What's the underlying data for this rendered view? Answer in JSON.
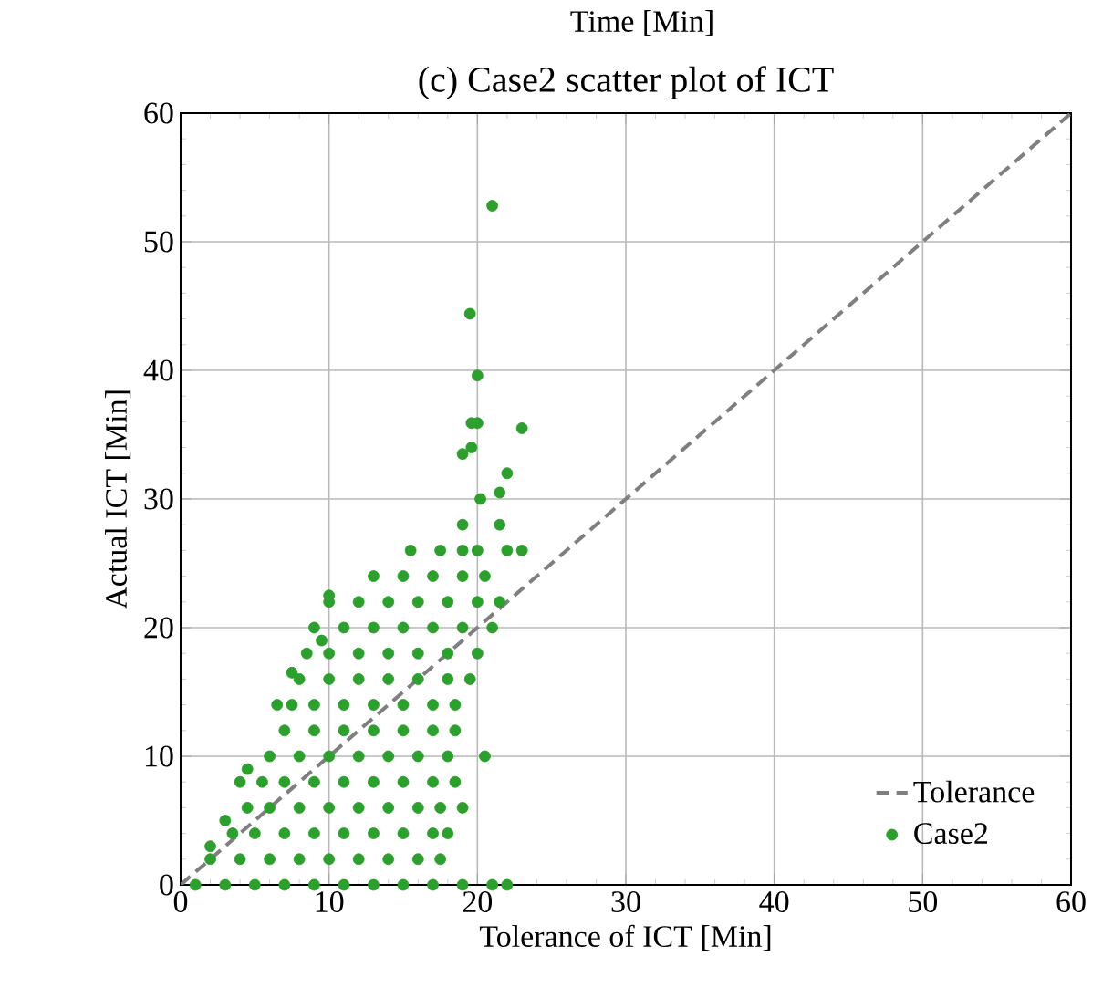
{
  "chart_data": {
    "type": "scatter",
    "title": "(c) Case2 scatter plot of ICT",
    "xlabel": "Tolerance of ICT [Min]",
    "ylabel": "Actual ICT [Min]",
    "annotations": [
      "Time [Min]"
    ],
    "xlim": [
      0,
      60
    ],
    "ylim": [
      0,
      60
    ],
    "xticks": [
      0,
      10,
      20,
      30,
      40,
      50,
      60
    ],
    "yticks": [
      0,
      10,
      20,
      30,
      40,
      50,
      60
    ],
    "grid": true,
    "legend": "bottom right",
    "series": [
      {
        "name": "Case2",
        "color": "#2ca02c",
        "marker": "circle",
        "x": [
          1,
          3,
          5,
          7,
          9,
          11,
          13,
          15,
          17,
          19,
          21,
          22,
          2,
          4,
          6,
          8,
          10,
          12,
          14,
          16,
          17.5,
          3.5,
          5,
          7,
          9,
          11,
          13,
          15,
          17,
          18,
          4.5,
          6,
          8,
          10,
          12,
          14,
          16,
          17.5,
          19,
          5.5,
          7,
          9,
          11,
          13,
          15,
          17,
          18.5,
          6,
          8,
          10,
          12,
          14,
          16,
          18,
          20.5,
          7,
          9,
          11,
          13,
          15,
          17,
          18.5,
          7.5,
          9,
          11,
          13,
          15,
          17,
          18.5,
          8,
          10,
          12,
          14,
          16,
          18,
          19.5,
          8.5,
          10,
          12,
          14,
          16,
          18,
          20,
          9,
          11,
          13,
          15,
          17,
          19,
          21,
          10,
          12,
          14,
          16,
          18,
          20,
          21.5,
          13,
          15,
          17,
          19,
          20.5,
          15.5,
          17.5,
          19,
          20,
          22,
          23,
          21.5,
          19,
          20.2,
          22,
          21.5,
          19.6,
          19,
          19.6,
          20,
          23,
          20,
          19.5,
          21,
          2,
          3,
          4,
          4.5,
          6.5,
          7.5,
          9.5,
          10
        ],
        "values": [
          0,
          0,
          0,
          0,
          0,
          0,
          0,
          0,
          0,
          0,
          0,
          0,
          2,
          2,
          2,
          2,
          2,
          2,
          2,
          2,
          2,
          4,
          4,
          4,
          4,
          4,
          4,
          4,
          4,
          4,
          6,
          6,
          6,
          6,
          6,
          6,
          6,
          6,
          6,
          8,
          8,
          8,
          8,
          8,
          8,
          8,
          8,
          10,
          10,
          10,
          10,
          10,
          10,
          10,
          10,
          12,
          12,
          12,
          12,
          12,
          12,
          12,
          14,
          14,
          14,
          14,
          14,
          14,
          14,
          16,
          16,
          16,
          16,
          16,
          16,
          16,
          18,
          18,
          18,
          18,
          18,
          18,
          18,
          20,
          20,
          20,
          20,
          20,
          20,
          20,
          22,
          22,
          22,
          22,
          22,
          22,
          22,
          24,
          24,
          24,
          24,
          24,
          26,
          26,
          26,
          26,
          26,
          26,
          28,
          28,
          30,
          32,
          30.5,
          34,
          33.5,
          35.9,
          35.9,
          35.5,
          39.6,
          44.4,
          52.8,
          3,
          5,
          8,
          9,
          14,
          16.5,
          19,
          22.5
        ]
      },
      {
        "name": "Tolerance",
        "type": "line",
        "color": "#7f7f7f",
        "line_style": "dashed",
        "marker": "none",
        "x": [
          0,
          60
        ],
        "values": [
          0,
          60
        ]
      }
    ]
  }
}
